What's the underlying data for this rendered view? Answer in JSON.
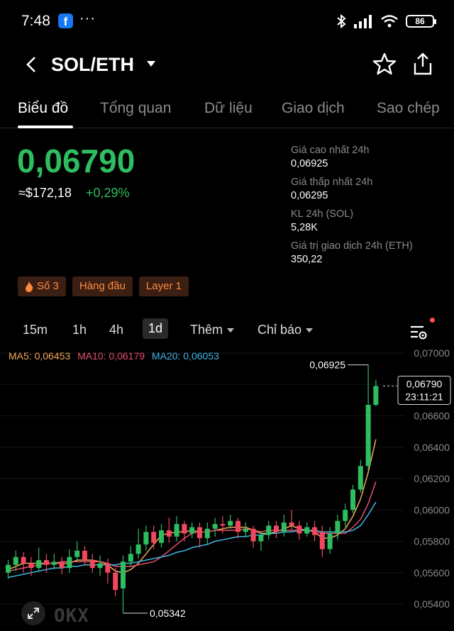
{
  "status_bar": {
    "time": "7:48",
    "battery": "86",
    "more": "···"
  },
  "header": {
    "pair": "SOL/ETH"
  },
  "tabs": [
    "Biểu đồ",
    "Tổng quan",
    "Dữ liệu",
    "Giao dịch",
    "Sao chép"
  ],
  "ticker": {
    "price": "0,06790",
    "usd": "≈$172,18",
    "change": "+0,29%"
  },
  "stats": [
    {
      "label": "Giá cao nhất 24h",
      "value": "0,06925"
    },
    {
      "label": "Giá thấp nhất 24h",
      "value": "0,06295"
    },
    {
      "label": "KL 24h (SOL)",
      "value": "5,28K"
    },
    {
      "label": "Giá trị giao dịch 24h (ETH)",
      "value": "350,22"
    }
  ],
  "tags": [
    {
      "label": "Số 3",
      "icon": "fire-icon"
    },
    {
      "label": "Hàng đầu"
    },
    {
      "label": "Layer 1"
    }
  ],
  "intervals": [
    "15m",
    "1h",
    "4h",
    "1d"
  ],
  "interval_active": "1d",
  "more_label": "Thêm",
  "indicators_label": "Chỉ báo",
  "ma": {
    "ma5": "MA5: 0,06453",
    "ma10": "MA10: 0,06179",
    "ma20": "MA20: 0,06053"
  },
  "colors": {
    "up": "#2ebd5f",
    "down": "#f0485e",
    "ma5": "#f4a95a",
    "ma10": "#e8506e",
    "ma20": "#3fb8e8",
    "tag_bg": "#3b1f12",
    "tag_text": "#ff8a3d"
  },
  "chart_data": {
    "type": "candlestick",
    "y_ticks": [
      "0,07000",
      "0,06800",
      "0,06600",
      "0,06400",
      "0,06200",
      "0,06000",
      "0,05800",
      "0,05600",
      "0,05400"
    ],
    "ylim": [
      0.0536,
      0.0702
    ],
    "high_label": "0,06925",
    "low_label": "0,05342",
    "current_price": "0,06790",
    "countdown": "23:11:21",
    "candles": [
      [
        0.056,
        0.0565,
        0.0568,
        0.0556
      ],
      [
        0.0565,
        0.057,
        0.0574,
        0.0561
      ],
      [
        0.057,
        0.0566,
        0.0573,
        0.056
      ],
      [
        0.0566,
        0.0563,
        0.057,
        0.0558
      ],
      [
        0.0563,
        0.0568,
        0.0576,
        0.0561
      ],
      [
        0.0568,
        0.0565,
        0.0572,
        0.056
      ],
      [
        0.0565,
        0.0567,
        0.0572,
        0.0562
      ],
      [
        0.0567,
        0.0563,
        0.057,
        0.0559
      ],
      [
        0.0563,
        0.057,
        0.0575,
        0.056
      ],
      [
        0.057,
        0.0574,
        0.058,
        0.0567
      ],
      [
        0.0574,
        0.0568,
        0.0577,
        0.0565
      ],
      [
        0.0568,
        0.0563,
        0.0572,
        0.056
      ],
      [
        0.0563,
        0.0566,
        0.0571,
        0.0558
      ],
      [
        0.0566,
        0.056,
        0.0569,
        0.0553
      ],
      [
        0.056,
        0.0549,
        0.0563,
        0.0545
      ],
      [
        0.055,
        0.0567,
        0.0571,
        0.05342
      ],
      [
        0.0567,
        0.0572,
        0.0577,
        0.0564
      ],
      [
        0.0572,
        0.0578,
        0.0588,
        0.0569
      ],
      [
        0.0578,
        0.0586,
        0.059,
        0.0574
      ],
      [
        0.0586,
        0.0579,
        0.059,
        0.0575
      ],
      [
        0.0579,
        0.0587,
        0.0591,
        0.0576
      ],
      [
        0.0587,
        0.0583,
        0.0595,
        0.0579
      ],
      [
        0.0583,
        0.0591,
        0.0596,
        0.058
      ],
      [
        0.0591,
        0.0585,
        0.0593,
        0.058
      ],
      [
        0.0585,
        0.0589,
        0.0592,
        0.0582
      ],
      [
        0.0589,
        0.0582,
        0.0592,
        0.0576
      ],
      [
        0.0582,
        0.0588,
        0.0592,
        0.0578
      ],
      [
        0.0588,
        0.0591,
        0.0595,
        0.0583
      ],
      [
        0.0591,
        0.059,
        0.0596,
        0.0585
      ],
      [
        0.059,
        0.0593,
        0.0597,
        0.0588
      ],
      [
        0.0593,
        0.0586,
        0.0595,
        0.0582
      ],
      [
        0.0586,
        0.0588,
        0.0592,
        0.0583
      ],
      [
        0.0588,
        0.058,
        0.059,
        0.0576
      ],
      [
        0.058,
        0.0584,
        0.0586,
        0.0574
      ],
      [
        0.0584,
        0.059,
        0.0593,
        0.0581
      ],
      [
        0.059,
        0.0586,
        0.0593,
        0.0582
      ],
      [
        0.0586,
        0.0592,
        0.0597,
        0.0583
      ],
      [
        0.0592,
        0.059,
        0.06,
        0.0587
      ],
      [
        0.059,
        0.0585,
        0.0593,
        0.0581
      ],
      [
        0.0585,
        0.0589,
        0.0592,
        0.0583
      ],
      [
        0.0589,
        0.0584,
        0.0593,
        0.058
      ],
      [
        0.0586,
        0.0575,
        0.059,
        0.057
      ],
      [
        0.0575,
        0.0585,
        0.0589,
        0.0572
      ],
      [
        0.0585,
        0.0593,
        0.0597,
        0.0581
      ],
      [
        0.0593,
        0.06,
        0.0604,
        0.0589
      ],
      [
        0.06,
        0.0613,
        0.0616,
        0.0598
      ],
      [
        0.0613,
        0.0628,
        0.0632,
        0.0611
      ],
      [
        0.0628,
        0.0667,
        0.06925,
        0.0625
      ],
      [
        0.0667,
        0.0679,
        0.0683,
        0.0666
      ]
    ],
    "ma5_series": [
      0.0562,
      0.0564,
      0.0566,
      0.0566,
      0.0566,
      0.0566,
      0.0566,
      0.0566,
      0.0566,
      0.0568,
      0.0568,
      0.0568,
      0.0567,
      0.0565,
      0.0561,
      0.056,
      0.0562,
      0.0566,
      0.0572,
      0.0578,
      0.0584,
      0.0585,
      0.0586,
      0.0586,
      0.0587,
      0.0586,
      0.0586,
      0.0587,
      0.0588,
      0.0589,
      0.0589,
      0.0589,
      0.0587,
      0.0585,
      0.0585,
      0.0586,
      0.0588,
      0.059,
      0.0588,
      0.0587,
      0.0586,
      0.0582,
      0.0582,
      0.0584,
      0.0588,
      0.0596,
      0.0607,
      0.0624,
      0.0645
    ],
    "ma10_series": [
      0.0561,
      0.0562,
      0.0563,
      0.0564,
      0.0565,
      0.0566,
      0.0566,
      0.0567,
      0.0567,
      0.0567,
      0.0567,
      0.0567,
      0.0567,
      0.0566,
      0.0564,
      0.0564,
      0.0564,
      0.0565,
      0.0566,
      0.0567,
      0.057,
      0.0574,
      0.0578,
      0.0582,
      0.0585,
      0.0586,
      0.0586,
      0.0587,
      0.0587,
      0.0587,
      0.0587,
      0.0588,
      0.0587,
      0.0586,
      0.0587,
      0.0587,
      0.0587,
      0.0587,
      0.0587,
      0.0587,
      0.0586,
      0.0585,
      0.0585,
      0.0585,
      0.0585,
      0.0589,
      0.0594,
      0.0604,
      0.0618
    ],
    "ma20_series": [
      0.0557,
      0.0558,
      0.0559,
      0.056,
      0.0561,
      0.0562,
      0.0563,
      0.0563,
      0.0564,
      0.0564,
      0.0565,
      0.0565,
      0.0565,
      0.0565,
      0.0565,
      0.0566,
      0.0566,
      0.0567,
      0.0568,
      0.0569,
      0.057,
      0.0571,
      0.0573,
      0.0574,
      0.0576,
      0.0577,
      0.0578,
      0.058,
      0.0581,
      0.0582,
      0.0583,
      0.0583,
      0.0584,
      0.0584,
      0.0585,
      0.0585,
      0.0586,
      0.0586,
      0.0587,
      0.0587,
      0.0587,
      0.0586,
      0.0586,
      0.0586,
      0.0586,
      0.0587,
      0.059,
      0.0597,
      0.0605
    ]
  }
}
